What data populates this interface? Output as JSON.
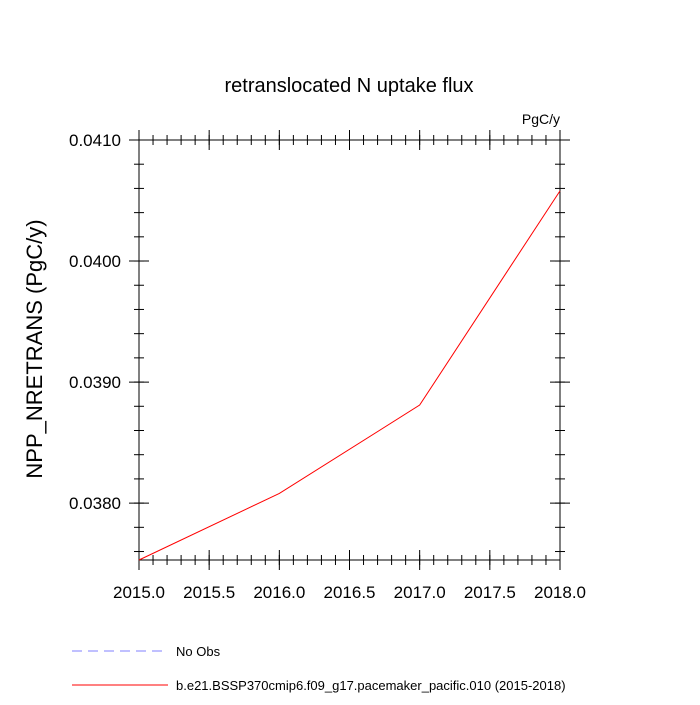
{
  "chart_data": {
    "type": "line",
    "title": "retranslocated N uptake flux",
    "units_label": "PgC/y",
    "ylabel": "NPP_NRETRANS  (PgC/y)",
    "xlabel": "",
    "xlim": [
      2015.0,
      2018.0
    ],
    "ylim": [
      0.03753,
      0.041
    ],
    "x_ticks": [
      2015.0,
      2015.5,
      2016.0,
      2016.5,
      2017.0,
      2017.5,
      2018.0
    ],
    "x_tick_labels": [
      "2015.0",
      "2015.5",
      "2016.0",
      "2016.5",
      "2017.0",
      "2017.5",
      "2018.0"
    ],
    "y_ticks": [
      0.038,
      0.039,
      0.04,
      0.041
    ],
    "y_tick_labels": [
      "0.0380",
      "0.0390",
      "0.0400",
      "0.0410"
    ],
    "y_minor_step": 0.0002,
    "x_minor_step": 0.1,
    "grid": false,
    "legend_position": "bottom",
    "series": [
      {
        "name": "b.e21.BSSP370cmip6.f09_g17.pacemaker_pacific.010 (2015-2018)",
        "color": "#ff0000",
        "dash": "solid",
        "x": [
          2015.0,
          2016.0,
          2017.0,
          2018.0
        ],
        "y": [
          0.03753,
          0.03808,
          0.03881,
          0.04058
        ]
      }
    ],
    "legend": [
      {
        "label": "No Obs",
        "color": "#8080ff",
        "dash": "dashed"
      },
      {
        "label": "b.e21.BSSP370cmip6.f09_g17.pacemaker_pacific.010 (2015-2018)",
        "color": "#ff0000",
        "dash": "solid"
      }
    ]
  }
}
